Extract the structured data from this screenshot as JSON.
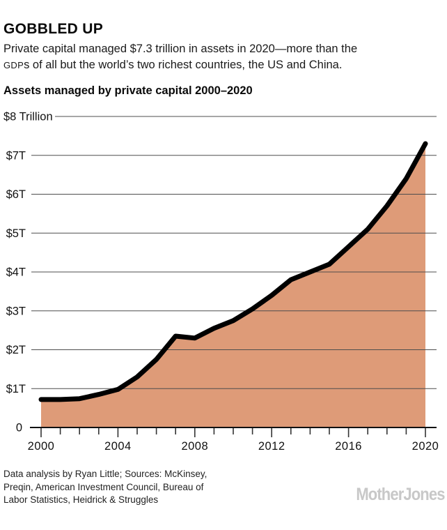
{
  "header": {
    "title": "GOBBLED UP",
    "desc_line1": "Private capital managed $7.3 trillion in assets in 2020—more than the",
    "desc_gdp": "GDP",
    "desc_line2_rest": "s of all but the world’s two richest countries, the US and China.",
    "chart_heading": "Assets managed by private capital 2000–2020"
  },
  "chart_data": {
    "type": "area",
    "title": "Assets managed by private capital 2000–2020",
    "x": [
      2000,
      2001,
      2002,
      2003,
      2004,
      2005,
      2006,
      2007,
      2008,
      2009,
      2010,
      2011,
      2012,
      2013,
      2014,
      2015,
      2016,
      2017,
      2018,
      2019,
      2020
    ],
    "values": [
      0.72,
      0.72,
      0.74,
      0.85,
      0.98,
      1.3,
      1.75,
      2.35,
      2.3,
      2.55,
      2.75,
      3.05,
      3.4,
      3.8,
      4.0,
      4.2,
      4.65,
      5.1,
      5.7,
      6.4,
      7.3
    ],
    "unit": "trillion USD",
    "ylim": [
      0,
      8
    ],
    "y_ticks": [
      0,
      1,
      2,
      3,
      4,
      5,
      6,
      7,
      8
    ],
    "y_tick_labels": [
      "0",
      "$1T",
      "$2T",
      "$3T",
      "$4T",
      "$5T",
      "$6T",
      "$7T",
      "$8 Trillion"
    ],
    "x_tick_years_labeled": [
      2000,
      2004,
      2008,
      2012,
      2016,
      2020
    ],
    "x_tick_labels": [
      "2000",
      "2004",
      "2008",
      "2012",
      "2016",
      "2020"
    ],
    "grid": true,
    "legend": false,
    "line_color": "#000000",
    "area_color": "#de9b78",
    "grid_color": "#4d4d4d",
    "axis_color": "#111111"
  },
  "footer": {
    "lines": [
      "Data analysis by Ryan Little; Sources: McKinsey,",
      "Preqin, American Investment Council, Bureau of",
      "Labor Statistics, Heidrick & Struggles"
    ],
    "logo_text": "MotherJones",
    "logo_color": "#c8c8c8"
  }
}
